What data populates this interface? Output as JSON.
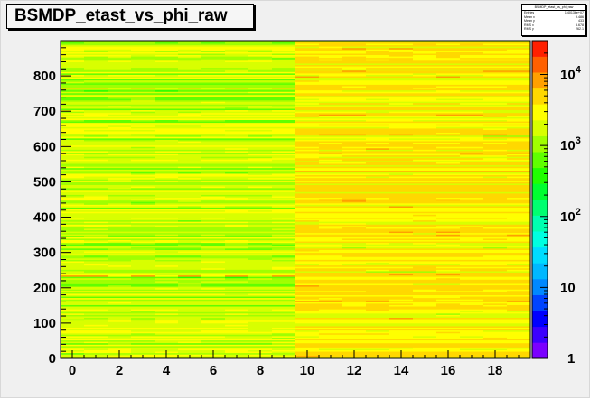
{
  "chart_data": {
    "type": "heatmap",
    "title": "BSMDP_etast_vs_phi_raw",
    "xlabel": "",
    "ylabel": "",
    "xlim": [
      -0.5,
      19.5
    ],
    "ylim": [
      0,
      900
    ],
    "x_ticks": [
      "0",
      "2",
      "4",
      "6",
      "8",
      "10",
      "12",
      "14",
      "16",
      "18"
    ],
    "y_ticks": [
      "0",
      "100",
      "200",
      "300",
      "400",
      "500",
      "600",
      "700",
      "800"
    ],
    "z_scale": "log",
    "zlim": [
      1,
      30000
    ],
    "z_ticks": [
      "1",
      "10",
      "10^2",
      "10^3",
      "10^4"
    ],
    "z_tick_values": [
      1,
      10,
      100,
      1000,
      10000
    ],
    "typical_count_left_half": 1500,
    "typical_count_right_half": 3000,
    "hotspots": [
      {
        "x": [
          0,
          1,
          3,
          5,
          7,
          9
        ],
        "y": 230,
        "value": 9000
      },
      {
        "x": [
          0,
          1,
          3,
          5,
          7,
          9
        ],
        "y": 762,
        "value": 6000
      },
      {
        "x": [
          10,
          11,
          12,
          13,
          14,
          15,
          16,
          17,
          18,
          19
        ],
        "y": 528,
        "value": 7000
      },
      {
        "x": [
          10,
          11,
          12,
          13,
          14,
          15,
          16,
          17,
          18,
          19
        ],
        "y": 40,
        "value": 5000
      }
    ],
    "palette": [
      "#7b00ff",
      "#3c00ff",
      "#0000ff",
      "#0044ff",
      "#0088ff",
      "#00b8ff",
      "#00dcff",
      "#00ffe0",
      "#00ffb0",
      "#00ff70",
      "#00ff30",
      "#20ff00",
      "#60ff00",
      "#a0ff00",
      "#d8ff00",
      "#ffff00",
      "#ffd800",
      "#ffa000",
      "#ff6000",
      "#ff2000"
    ]
  },
  "title": "BSMDP_etast_vs_phi_raw",
  "stats": {
    "name": "BSMDP_etast_vs_phi_raw",
    "rows": [
      {
        "label": "Entries",
        "value": "1.40136e+07"
      },
      {
        "label": "Mean x",
        "value": "9.486"
      },
      {
        "label": "Mean y",
        "value": "433"
      },
      {
        "label": "RMS x",
        "value": "5.678"
      },
      {
        "label": "RMS y",
        "value": "262.1"
      }
    ]
  }
}
